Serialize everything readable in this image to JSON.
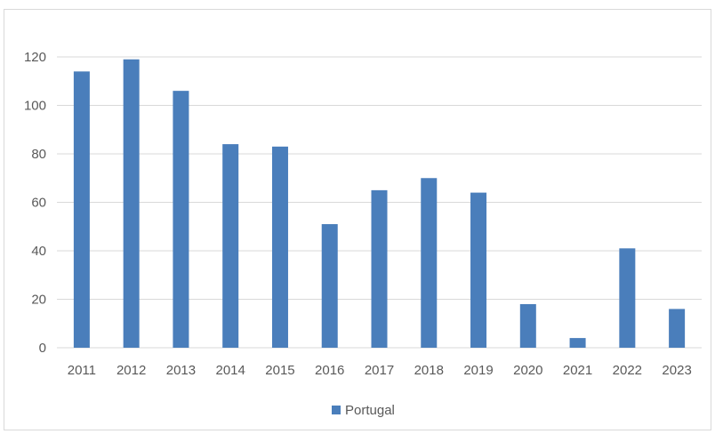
{
  "chart_data": {
    "type": "bar",
    "title": "",
    "xlabel": "",
    "ylabel": "",
    "categories": [
      "2011",
      "2012",
      "2013",
      "2014",
      "2015",
      "2016",
      "2017",
      "2018",
      "2019",
      "2020",
      "2021",
      "2022",
      "2023"
    ],
    "series": [
      {
        "name": "Portugal",
        "color": "#4a7ebb",
        "values": [
          114,
          119,
          106,
          84,
          83,
          51,
          65,
          70,
          64,
          18,
          4,
          41,
          16
        ]
      }
    ],
    "ylim": [
      0,
      120
    ],
    "yticks": [
      0,
      20,
      40,
      60,
      80,
      100,
      120
    ],
    "grid": true,
    "legend": "bottom"
  }
}
